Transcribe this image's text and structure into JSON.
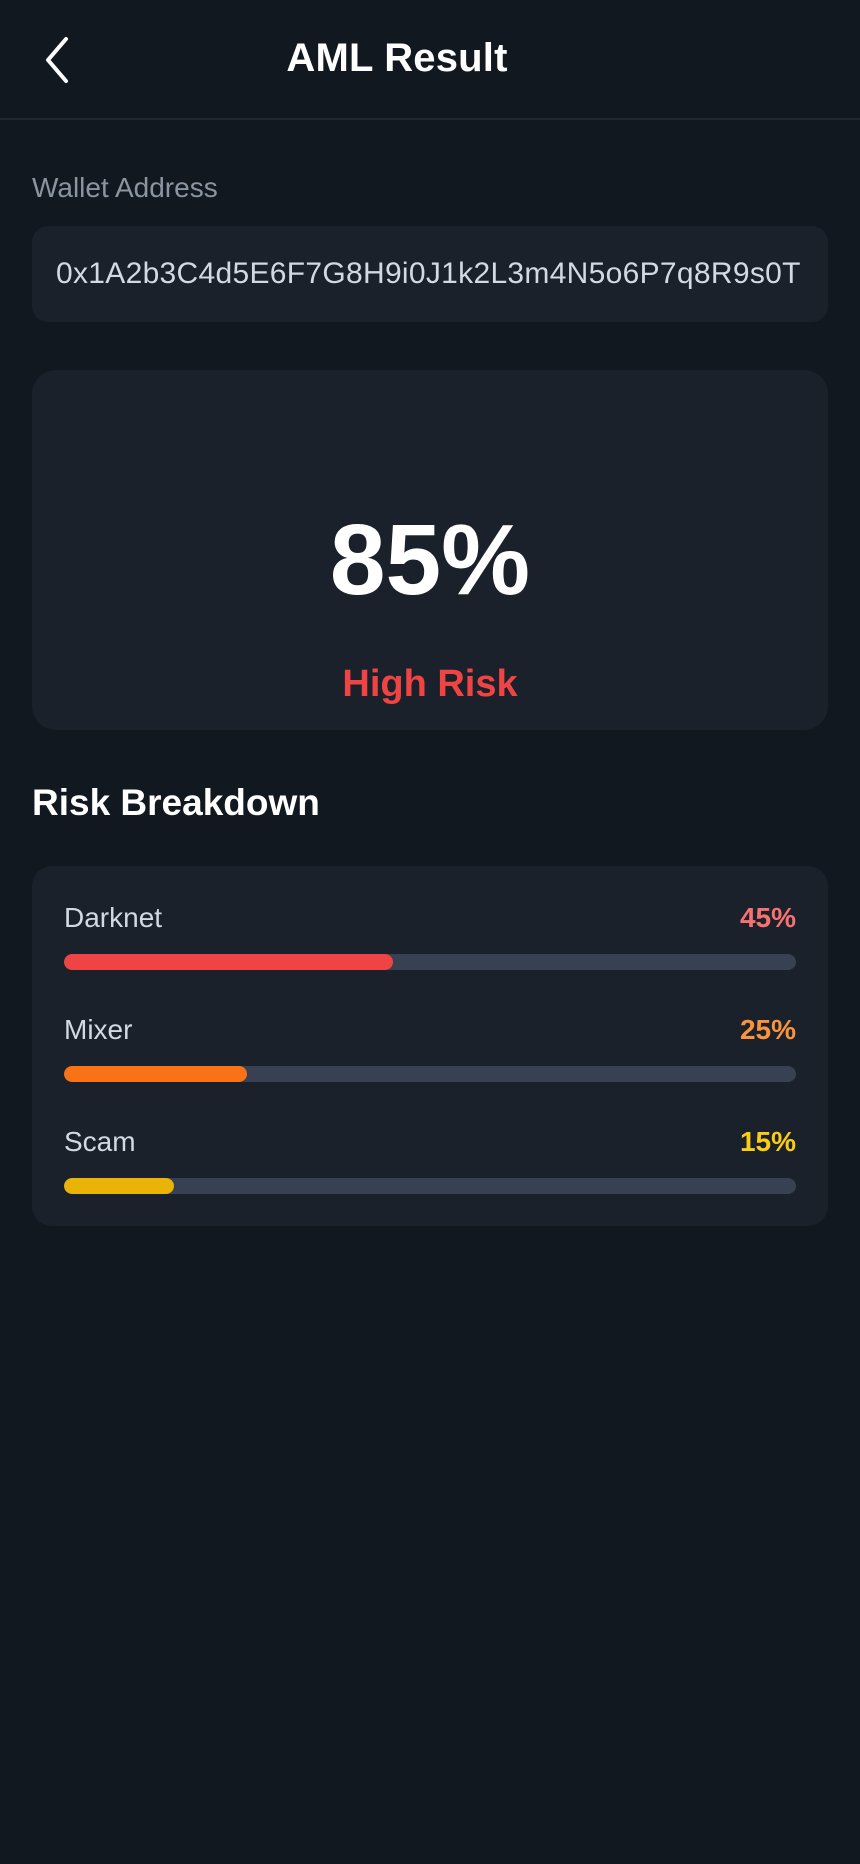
{
  "header": {
    "title": "AML Result",
    "back_icon": "chevron-left-icon"
  },
  "wallet": {
    "label": "Wallet Address",
    "value": "0x1A2b3C4d5E6F7G8H9i0J1k2L3m4N5o6P7q8R9s0T"
  },
  "score": {
    "value": "85%",
    "level_label": "High Risk",
    "level_color": "#ef4444"
  },
  "breakdown": {
    "title": "Risk Breakdown",
    "items": [
      {
        "name": "Darknet",
        "percent_label": "45%",
        "fraction": 0.45,
        "color": "#ef4444",
        "label_color": "#f87171"
      },
      {
        "name": "Mixer",
        "percent_label": "25%",
        "fraction": 0.25,
        "color": "#f97316",
        "label_color": "#fb923c"
      },
      {
        "name": "Scam",
        "percent_label": "15%",
        "fraction": 0.15,
        "color": "#eab308",
        "label_color": "#facc15"
      }
    ]
  },
  "colors": {
    "background": "#111820",
    "card": "#1a212b",
    "track": "#374151"
  }
}
